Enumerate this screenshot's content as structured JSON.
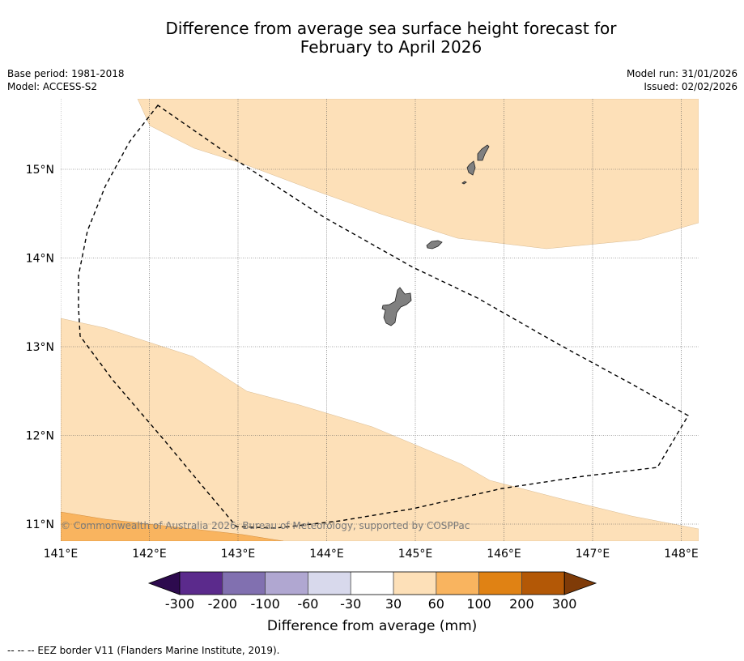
{
  "title": {
    "line1": "Difference from average sea surface height forecast for",
    "line2": "February to April 2026"
  },
  "meta": {
    "base_period": "Base period: 1981-2018",
    "model": "Model: ACCESS-S2",
    "model_run": "Model run: 31/01/2026",
    "issued": "Issued: 02/02/2026"
  },
  "map": {
    "lon_labels": [
      "141°E",
      "142°E",
      "143°E",
      "144°E",
      "145°E",
      "146°E",
      "147°E",
      "148°E"
    ],
    "lat_labels": [
      "15°N",
      "14°N",
      "13°N",
      "12°N",
      "11°N"
    ],
    "copyright": "© Commonwealth of Australia 2026, Bureau of Meteorology, supported by COSPPac"
  },
  "colorbar": {
    "title": "Difference from average (mm)",
    "ticks": [
      "-300",
      "-200",
      "-100",
      "-60",
      "-30",
      "30",
      "60",
      "100",
      "200",
      "300"
    ],
    "colors": {
      "under": "#2d0a4e",
      "c1": "#5b2a8c",
      "c2": "#8170b0",
      "c3": "#b0a7d1",
      "c4": "#d8d9ec",
      "c5": "#ffffff",
      "c6": "#fde0b8",
      "c7": "#f9b45f",
      "c8": "#e08214",
      "c9": "#b35806",
      "over": "#7f3b08"
    }
  },
  "footer": {
    "legend": "-- -- -- EEZ border V11 (Flanders Marine Institute, 2019)."
  }
}
